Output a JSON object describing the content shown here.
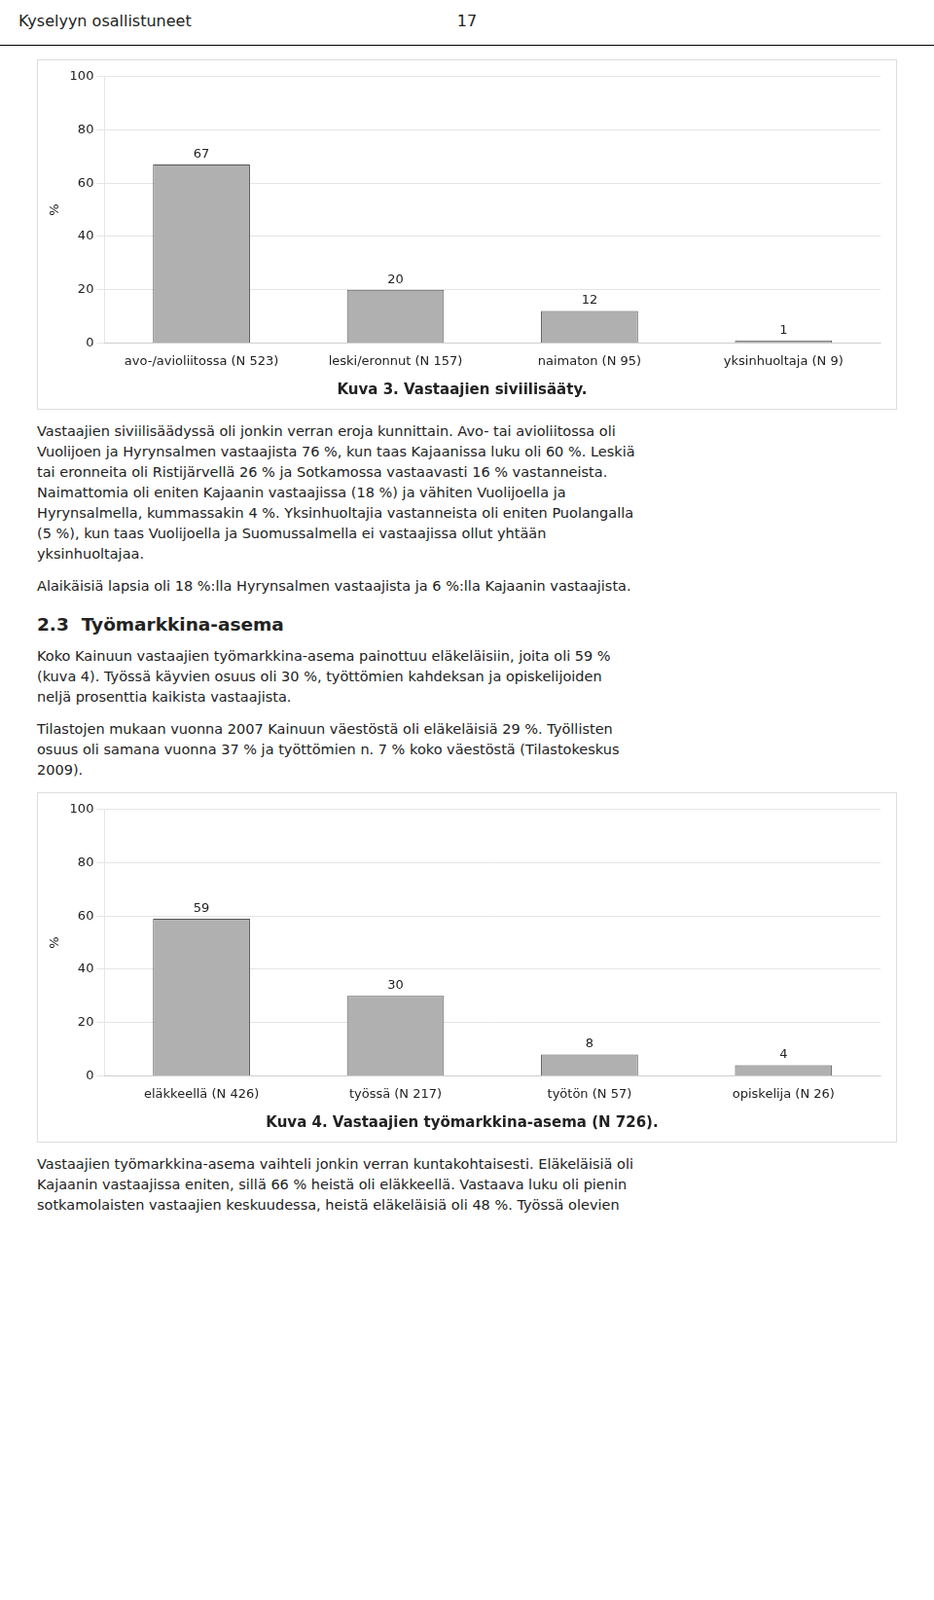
{
  "page_header": [
    "Kyselyyn osallistuneet",
    "17"
  ],
  "chart_data": [
    {
      "type": "bar",
      "title": "Kuva 3. Vastaajien siviilisääty.",
      "categories": [
        "avo-/avioliitossa (N 523)",
        "leski/eronnut (N 157)",
        "naimaton (N 95)",
        "yksinhuoltaja (N 9)"
      ],
      "values": [
        67,
        20,
        12,
        1
      ],
      "y_label": "%",
      "color": "#b0b0b0",
      "ylim": [
        0,
        100
      ],
      "yticks": [
        0,
        20,
        40,
        60,
        80,
        100
      ],
      "grid": true,
      "data_labels": true
    },
    {
      "type": "bar",
      "title": "Kuva 4. Vastaajien työmarkkina-asema (N 726).",
      "categories": [
        "eläkkeellä (N 426)",
        "työssä (N 217)",
        "työtön (N 57)",
        "opiskelija (N 26)"
      ],
      "values": [
        59,
        30,
        8,
        4
      ],
      "y_label": "%",
      "color": "#b0b0b0",
      "ylim": [
        0,
        100
      ],
      "yticks": [
        0,
        20,
        40,
        60,
        80,
        100
      ],
      "grid": true,
      "data_labels": true
    }
  ],
  "text_between_charts": [
    {
      "kind": "paragraph",
      "lines": [
        "Vastaajien siviilisäädyssä oli jonkin verran eroja kunnittain. Avo- tai avioliitossa oli",
        "Vuolijoen ja Hyrynsalmen vastaajista 76 %, kun taas Kajaanissa luku oli 60 %. Leskiä",
        "tai eronneita oli Ristijärvellä 26 % ja Sotkamossa vastaavasti 16 % vastanneista.",
        "Naimattomia oli eniten Kajaanin vastaajissa (18 %) ja vähiten Vuolijoella ja",
        "Hyrynsalmella, kummassakin 4 %. Yksinhuoltajia vastanneista oli eniten Puolangalla",
        "(5 %), kun taas Vuolijoella ja Suomussalmella ei vastaajissa ollut yhtään",
        "yksinhuoltajaa."
      ]
    },
    {
      "kind": "paragraph",
      "lines": [
        "Alaikäisiä lapsia oli 18 %:lla Hyrynsalmen vastaajista ja 6 %:lla Kajaanin vastaajista."
      ]
    },
    {
      "kind": "heading",
      "lines": [
        "2.3",
        "Työmarkkina-asema"
      ]
    },
    {
      "kind": "paragraph",
      "lines": [
        "Koko Kainuun vastaajien työmarkkina-asema painottuu eläkeläisiin, joita oli 59 %",
        "(kuva 4). Työssä käyvien osuus oli 30 %, työttömien kahdeksan ja opiskelijoiden",
        "neljä prosenttia kaikista vastaajista."
      ]
    },
    {
      "kind": "paragraph",
      "lines": [
        "Tilastojen mukaan vuonna 2007 Kainuun väestöstä oli eläkeläisiä 29 %. Työllisten",
        "osuus oli samana vuonna 37 % ja työttömien n. 7 % koko väestöstä (Tilastokeskus",
        "2009)."
      ]
    }
  ],
  "text_after_charts": [
    {
      "kind": "paragraph",
      "lines": [
        "Vastaajien työmarkkina-asema vaihteli jonkin verran kuntakohtaisesti. Eläkeläisiä oli",
        "Kajaanin vastaajissa eniten, sillä 66 % heistä oli eläkkeellä. Vastaava luku oli pienin",
        "sotkamolaisten vastaajien keskuudessa, heistä eläkeläisiä oli 48 %. Työssä olevien"
      ]
    }
  ]
}
